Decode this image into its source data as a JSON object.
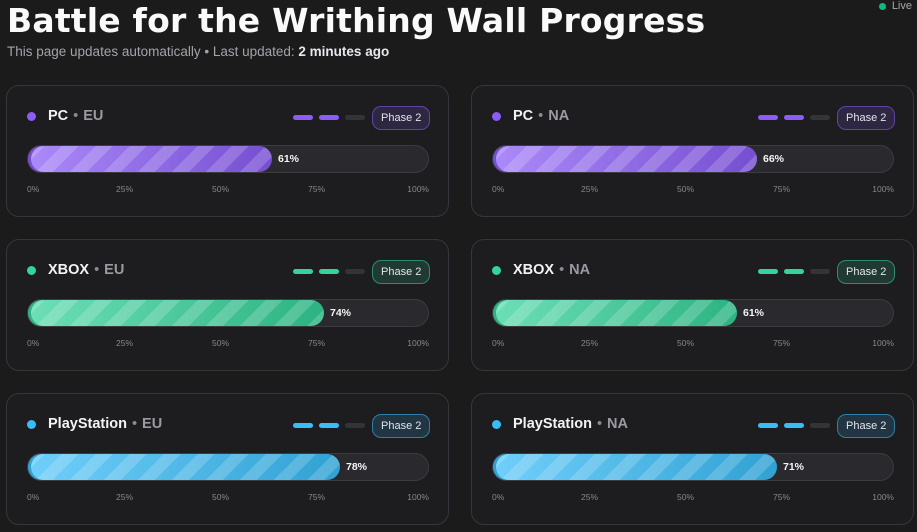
{
  "header": {
    "title": "Battle for the Writhing Wall Progress",
    "subtitle_prefix": "This page updates automatically • Last updated: ",
    "subtitle_time": "2 minutes ago",
    "live_label": "Live"
  },
  "axis_ticks": [
    "0%",
    "25%",
    "50%",
    "75%",
    "100%"
  ],
  "colors": {
    "pc": "#8b5cf6",
    "xbox": "#34d399",
    "playstation": "#38bdf8"
  },
  "cards": [
    {
      "platform": "PC",
      "region": "EU",
      "theme": "pc",
      "phase": "Phase 2",
      "progress": 61,
      "progress_label": "61%",
      "phase_steps_done": 2,
      "phase_steps_total": 3
    },
    {
      "platform": "PC",
      "region": "NA",
      "theme": "pc",
      "phase": "Phase 2",
      "progress": 66,
      "progress_label": "66%",
      "phase_steps_done": 2,
      "phase_steps_total": 3
    },
    {
      "platform": "XBOX",
      "region": "EU",
      "theme": "xbox",
      "phase": "Phase 2",
      "progress": 74,
      "progress_label": "74%",
      "phase_steps_done": 2,
      "phase_steps_total": 3
    },
    {
      "platform": "XBOX",
      "region": "NA",
      "theme": "xbox",
      "phase": "Phase 2",
      "progress": 61,
      "progress_label": "61%",
      "phase_steps_done": 2,
      "phase_steps_total": 3
    },
    {
      "platform": "PlayStation",
      "region": "EU",
      "theme": "playstation",
      "phase": "Phase 2",
      "progress": 78,
      "progress_label": "78%",
      "phase_steps_done": 2,
      "phase_steps_total": 3
    },
    {
      "platform": "PlayStation",
      "region": "NA",
      "theme": "playstation",
      "phase": "Phase 2",
      "progress": 71,
      "progress_label": "71%",
      "phase_steps_done": 2,
      "phase_steps_total": 3
    }
  ]
}
